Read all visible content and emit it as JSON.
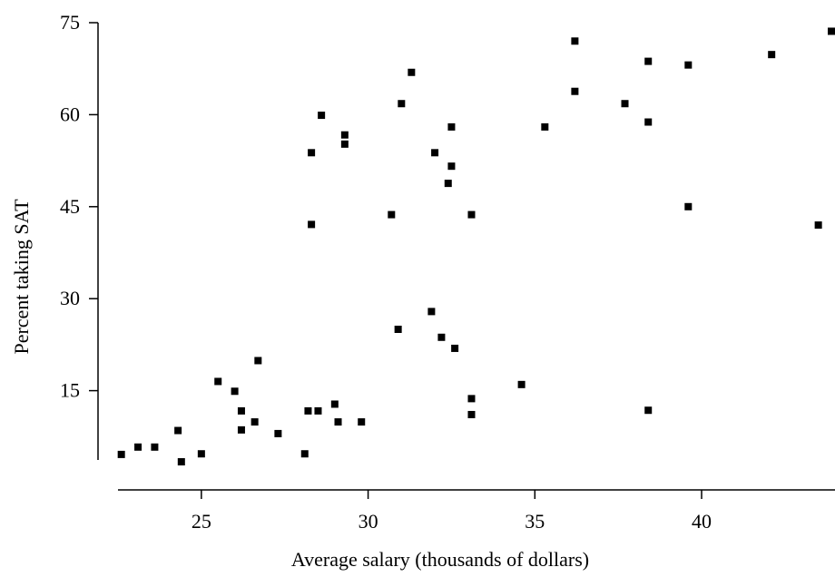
{
  "chart_data": {
    "type": "scatter",
    "title": "",
    "xlabel": "Average salary (thousands of dollars)",
    "ylabel": "Percent taking SAT",
    "xlim": [
      22.5,
      44
    ],
    "ylim": [
      0,
      75
    ],
    "x_ticks": [
      25,
      30,
      35,
      40
    ],
    "y_ticks": [
      15,
      30,
      45,
      60,
      75
    ],
    "grid": false,
    "legend": "none",
    "marker": "square",
    "color": "#000000",
    "series": [
      {
        "points": [
          {
            "x": 22.6,
            "y": 4.6
          },
          {
            "x": 23.1,
            "y": 5.8
          },
          {
            "x": 23.6,
            "y": 5.8
          },
          {
            "x": 24.3,
            "y": 8.5
          },
          {
            "x": 24.4,
            "y": 3.4
          },
          {
            "x": 25.0,
            "y": 4.7
          },
          {
            "x": 25.5,
            "y": 16.5
          },
          {
            "x": 26.0,
            "y": 14.9
          },
          {
            "x": 26.2,
            "y": 11.7
          },
          {
            "x": 26.2,
            "y": 8.6
          },
          {
            "x": 26.6,
            "y": 9.9
          },
          {
            "x": 26.7,
            "y": 19.9
          },
          {
            "x": 27.3,
            "y": 8.0
          },
          {
            "x": 28.1,
            "y": 4.7
          },
          {
            "x": 28.2,
            "y": 11.7
          },
          {
            "x": 28.5,
            "y": 11.7
          },
          {
            "x": 29.0,
            "y": 12.8
          },
          {
            "x": 29.1,
            "y": 9.9
          },
          {
            "x": 29.8,
            "y": 9.9
          },
          {
            "x": 28.3,
            "y": 42.1
          },
          {
            "x": 28.3,
            "y": 53.8
          },
          {
            "x": 28.6,
            "y": 59.9
          },
          {
            "x": 29.3,
            "y": 56.7
          },
          {
            "x": 29.3,
            "y": 55.2
          },
          {
            "x": 30.7,
            "y": 43.7
          },
          {
            "x": 30.9,
            "y": 25.0
          },
          {
            "x": 31.0,
            "y": 61.8
          },
          {
            "x": 31.3,
            "y": 66.9
          },
          {
            "x": 31.9,
            "y": 27.9
          },
          {
            "x": 32.0,
            "y": 53.8
          },
          {
            "x": 32.2,
            "y": 23.7
          },
          {
            "x": 32.4,
            "y": 48.8
          },
          {
            "x": 32.5,
            "y": 58.0
          },
          {
            "x": 32.5,
            "y": 51.6
          },
          {
            "x": 32.6,
            "y": 21.9
          },
          {
            "x": 33.1,
            "y": 43.7
          },
          {
            "x": 33.1,
            "y": 13.7
          },
          {
            "x": 33.1,
            "y": 11.1
          },
          {
            "x": 34.6,
            "y": 16.0
          },
          {
            "x": 35.3,
            "y": 58.0
          },
          {
            "x": 36.2,
            "y": 72.0
          },
          {
            "x": 36.2,
            "y": 63.8
          },
          {
            "x": 37.7,
            "y": 61.8
          },
          {
            "x": 38.4,
            "y": 68.7
          },
          {
            "x": 38.4,
            "y": 58.8
          },
          {
            "x": 38.4,
            "y": 11.8
          },
          {
            "x": 39.6,
            "y": 68.1
          },
          {
            "x": 39.6,
            "y": 45.0
          },
          {
            "x": 42.1,
            "y": 69.8
          },
          {
            "x": 43.5,
            "y": 42.0
          },
          {
            "x": 43.9,
            "y": 73.6
          }
        ]
      }
    ]
  }
}
